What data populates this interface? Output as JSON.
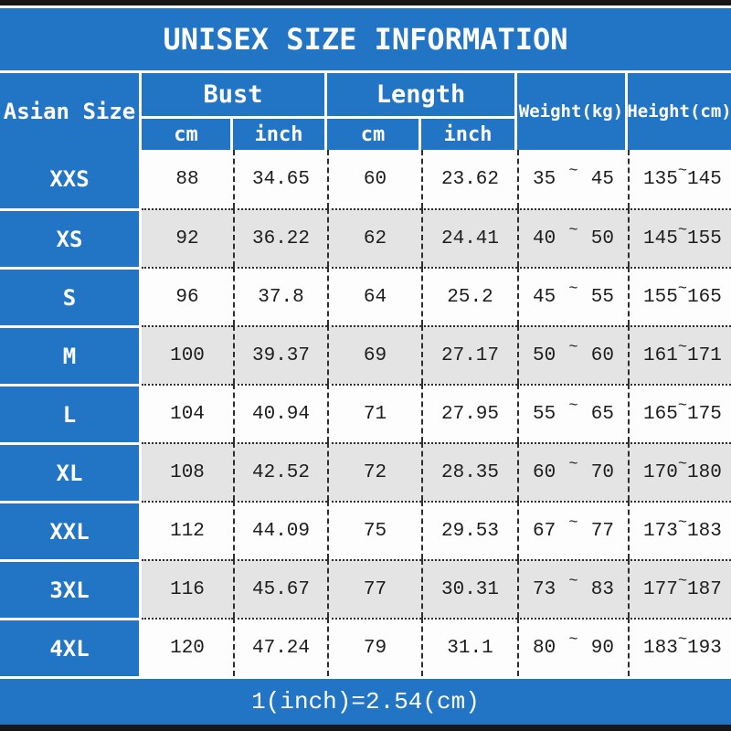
{
  "colors": {
    "header_blue": "#2274c5",
    "alt_row_gray": "#e5e4e4",
    "edge_bar_black": "#161616",
    "data_text": "#1d1d1d",
    "header_text": "#ffffff"
  },
  "chart_data": {
    "type": "table",
    "title": "UNISEX SIZE INFORMATION",
    "corner_header": "Asian Size",
    "group_headers": [
      {
        "label": "Bust",
        "subs": [
          "cm",
          "inch"
        ]
      },
      {
        "label": "Length",
        "subs": [
          "cm",
          "inch"
        ]
      }
    ],
    "span_headers": [
      "Weight(kg)",
      "Height(cm)"
    ],
    "tilde": "~",
    "rows": [
      {
        "size": "XXS",
        "bust_cm": "88",
        "bust_inch": "34.65",
        "len_cm": "60",
        "len_inch": "23.62",
        "wt_lo": "35",
        "wt_hi": "45",
        "ht_lo": "135",
        "ht_hi": "145"
      },
      {
        "size": "XS",
        "bust_cm": "92",
        "bust_inch": "36.22",
        "len_cm": "62",
        "len_inch": "24.41",
        "wt_lo": "40",
        "wt_hi": "50",
        "ht_lo": "145",
        "ht_hi": "155"
      },
      {
        "size": "S",
        "bust_cm": "96",
        "bust_inch": "37.8",
        "len_cm": "64",
        "len_inch": "25.2",
        "wt_lo": "45",
        "wt_hi": "55",
        "ht_lo": "155",
        "ht_hi": "165"
      },
      {
        "size": "M",
        "bust_cm": "100",
        "bust_inch": "39.37",
        "len_cm": "69",
        "len_inch": "27.17",
        "wt_lo": "50",
        "wt_hi": "60",
        "ht_lo": "161",
        "ht_hi": "171"
      },
      {
        "size": "L",
        "bust_cm": "104",
        "bust_inch": "40.94",
        "len_cm": "71",
        "len_inch": "27.95",
        "wt_lo": "55",
        "wt_hi": "65",
        "ht_lo": "165",
        "ht_hi": "175"
      },
      {
        "size": "XL",
        "bust_cm": "108",
        "bust_inch": "42.52",
        "len_cm": "72",
        "len_inch": "28.35",
        "wt_lo": "60",
        "wt_hi": "70",
        "ht_lo": "170",
        "ht_hi": "180"
      },
      {
        "size": "XXL",
        "bust_cm": "112",
        "bust_inch": "44.09",
        "len_cm": "75",
        "len_inch": "29.53",
        "wt_lo": "67",
        "wt_hi": "77",
        "ht_lo": "173",
        "ht_hi": "183"
      },
      {
        "size": "3XL",
        "bust_cm": "116",
        "bust_inch": "45.67",
        "len_cm": "77",
        "len_inch": "30.31",
        "wt_lo": "73",
        "wt_hi": "83",
        "ht_lo": "177",
        "ht_hi": "187"
      },
      {
        "size": "4XL",
        "bust_cm": "120",
        "bust_inch": "47.24",
        "len_cm": "79",
        "len_inch": "31.1",
        "wt_lo": "80",
        "wt_hi": "90",
        "ht_lo": "183",
        "ht_hi": "193"
      }
    ],
    "footnote": "1(inch)=2.54(cm)"
  }
}
